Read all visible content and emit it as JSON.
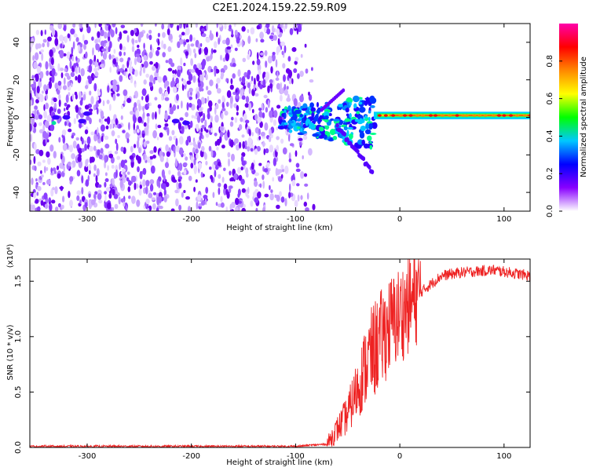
{
  "title": "C2E1.2024.159.22.59.R09",
  "chart_data": [
    {
      "type": "heatmap",
      "xlabel": "Height of straight line (km)",
      "ylabel": "Frequency (Hz)",
      "xlim": [
        -355,
        125
      ],
      "ylim": [
        -50,
        50
      ],
      "xticks": [
        -300,
        -200,
        -100,
        0,
        100
      ],
      "yticks": [
        -40,
        -20,
        0,
        20,
        40
      ],
      "colorbar": {
        "label": "Normalized spectral amplitude",
        "range": [
          0.0,
          1.0
        ],
        "ticks": [
          "0.0",
          "0.2",
          "0.4",
          "0.6",
          "0.8"
        ],
        "colors": [
          "#ffffff",
          "#8800ff",
          "#0000ff",
          "#00c8ff",
          "#00ff00",
          "#ffff00",
          "#ff8800",
          "#ff0000",
          "#ff00aa"
        ]
      },
      "regions": [
        {
          "x": [
            -355,
            -90
          ],
          "y": [
            -50,
            50
          ],
          "level": 0.12
        },
        {
          "x": [
            -110,
            -25
          ],
          "y": [
            -20,
            10
          ],
          "level": 0.35
        },
        {
          "x": [
            -25,
            125
          ],
          "y": [
            0,
            2
          ],
          "level": 0.8
        }
      ]
    },
    {
      "type": "line",
      "xlabel": "Height of straight line (km)",
      "ylabel": "SNR (10 * v/v)",
      "yscale_label": "(x10⁴)",
      "xlim": [
        -355,
        125
      ],
      "ylim": [
        0.0,
        1.7
      ],
      "xticks": [
        -300,
        -200,
        -100,
        0,
        100
      ],
      "yticks": [
        "0.0",
        "0.5",
        "1.0",
        "1.5"
      ],
      "line_color": "#ee2222",
      "profile": [
        {
          "x": -355,
          "y": 0.01
        },
        {
          "x": -100,
          "y": 0.01
        },
        {
          "x": -70,
          "y": 0.03
        },
        {
          "x": -50,
          "y": 0.3
        },
        {
          "x": -30,
          "y": 0.8
        },
        {
          "x": -10,
          "y": 1.1
        },
        {
          "x": 5,
          "y": 1.25
        },
        {
          "x": 20,
          "y": 1.4
        },
        {
          "x": 40,
          "y": 1.55
        },
        {
          "x": 60,
          "y": 1.58
        },
        {
          "x": 90,
          "y": 1.6
        },
        {
          "x": 125,
          "y": 1.55
        }
      ]
    }
  ]
}
